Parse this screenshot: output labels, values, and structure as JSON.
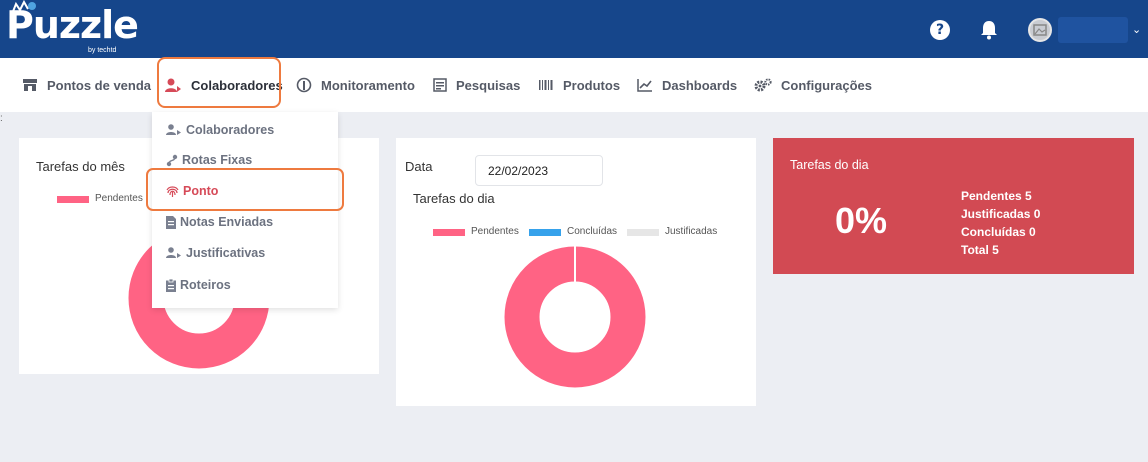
{
  "header": {
    "logo_text": "Puzzle",
    "logo_sub": "by techtd",
    "help_glyph": "?",
    "user_caret": "⌄",
    "icons": [
      "help-icon",
      "bell-icon",
      "avatar"
    ]
  },
  "nav": {
    "items": [
      {
        "label": "Pontos de venda",
        "icon": "store-icon"
      },
      {
        "label": "Colaboradores",
        "icon": "user-icon"
      },
      {
        "label": "Monitoramento",
        "icon": "monitor-icon"
      },
      {
        "label": "Pesquisas",
        "icon": "survey-icon"
      },
      {
        "label": "Produtos",
        "icon": "barcode-icon"
      },
      {
        "label": "Dashboards",
        "icon": "chart-icon"
      },
      {
        "label": "Configurações",
        "icon": "gears-icon"
      }
    ],
    "active": "Colaboradores"
  },
  "dropdown": {
    "items": [
      {
        "label": "Colaboradores",
        "icon": "users-icon"
      },
      {
        "label": "Rotas Fixas",
        "icon": "route-icon"
      },
      {
        "label": "Ponto",
        "icon": "fingerprint-icon"
      },
      {
        "label": "Notas Enviadas",
        "icon": "file-icon"
      },
      {
        "label": "Justificativas",
        "icon": "users-icon"
      },
      {
        "label": "Roteiros",
        "icon": "clipboard-icon"
      }
    ],
    "active": "Ponto"
  },
  "card_month": {
    "title": "Tarefas do mês",
    "legend": [
      "Pendentes"
    ]
  },
  "card_day": {
    "date_label": "Data",
    "date_value": "22/02/2023",
    "title": "Tarefas do dia",
    "legend": [
      "Pendentes",
      "Concluídas",
      "Justificadas"
    ]
  },
  "card_summary": {
    "title": "Tarefas do dia",
    "percent": "0%",
    "lines": [
      "Pendentes 5",
      "Justificadas 0",
      "Concluídas 0",
      "Total 5"
    ]
  },
  "colors": {
    "header": "#16468b",
    "pending": "#ff6384",
    "done": "#36a2eb",
    "justified": "#e6e6e6",
    "summary_bg": "#d24a53",
    "highlight": "#ee7a3f"
  },
  "chart_data": [
    {
      "type": "pie",
      "title": "Tarefas do mês",
      "categories": [
        "Pendentes"
      ],
      "values": [
        1
      ]
    },
    {
      "type": "pie",
      "title": "Tarefas do dia",
      "categories": [
        "Pendentes",
        "Concluídas",
        "Justificadas"
      ],
      "values": [
        5,
        0,
        0
      ]
    }
  ]
}
